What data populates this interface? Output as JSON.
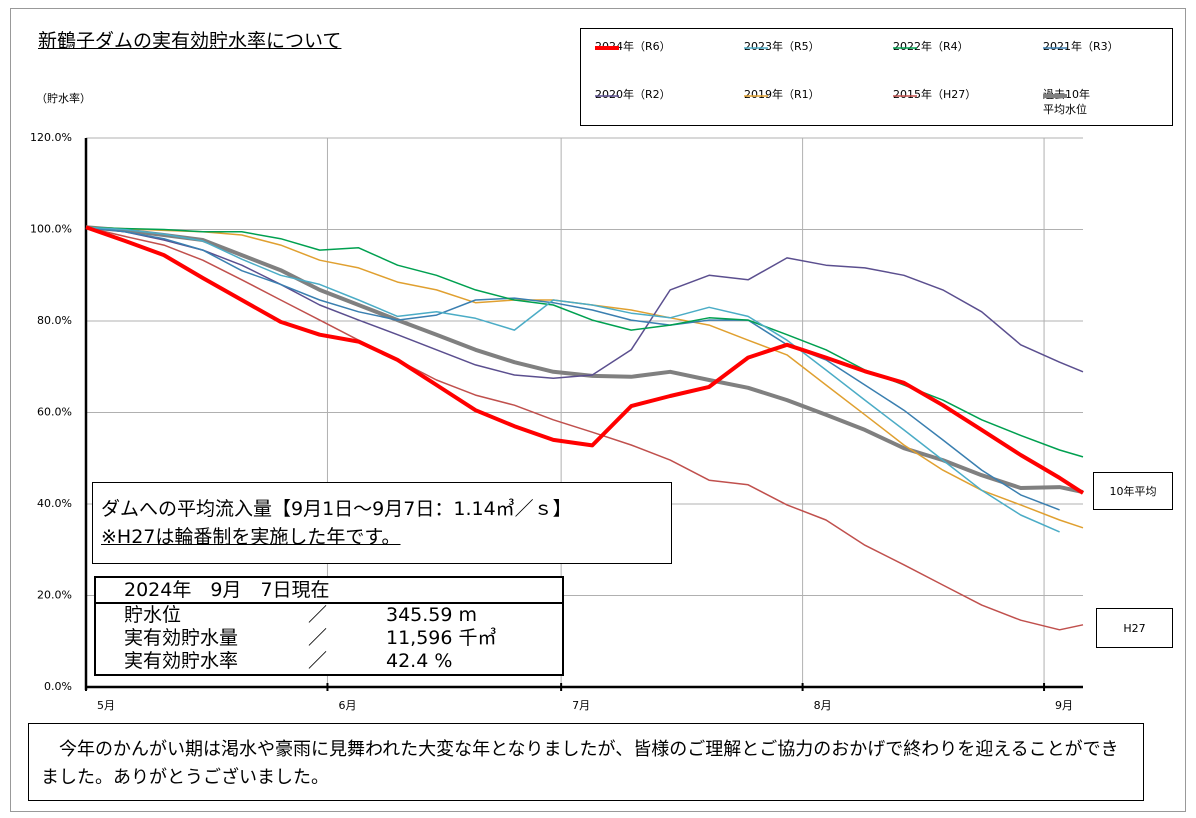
{
  "chart_data": {
    "type": "line",
    "title": "新鶴子ダムの実有効貯水率について",
    "y_label": "（貯水率）",
    "x": [
      0,
      5,
      10,
      15,
      20,
      25,
      30,
      35,
      40,
      45,
      50,
      55,
      60,
      65,
      70,
      75,
      80,
      85,
      90,
      95,
      100,
      105,
      110,
      115,
      120,
      125,
      128
    ],
    "xlim": [
      0,
      128
    ],
    "xticks": [
      {
        "value": 0,
        "label": "5月"
      },
      {
        "value": 31,
        "label": "6月"
      },
      {
        "value": 61,
        "label": "7月"
      },
      {
        "value": 92,
        "label": "8月"
      },
      {
        "value": 123,
        "label": "9月"
      }
    ],
    "ylim": [
      0,
      120
    ],
    "yticks": [
      {
        "value": 0,
        "label": "0.0%"
      },
      {
        "value": 20,
        "label": "20.0%"
      },
      {
        "value": 40,
        "label": "40.0%"
      },
      {
        "value": 60,
        "label": "60.0%"
      },
      {
        "value": 80,
        "label": "80.0%"
      },
      {
        "value": 100,
        "label": "100.0%"
      },
      {
        "value": 120,
        "label": "120.0%"
      }
    ],
    "grid": true,
    "series": [
      {
        "name": "2024年（R6）",
        "color": "#ff0000",
        "line_width": 4,
        "values": [
          100.5,
          97.5,
          94.4,
          89.4,
          84.6,
          79.8,
          77,
          75.5,
          71.5,
          66,
          60.5,
          57,
          54,
          52.8,
          61.4,
          63.6,
          65.6,
          72,
          74.8,
          72,
          69,
          66.5,
          61.6,
          56.2,
          50.7,
          45.7,
          42.4
        ]
      },
      {
        "name": "2023年（R5）",
        "color": "#4bacc6",
        "line_width": 1.5,
        "values": [
          100.5,
          100,
          99,
          97.5,
          93.5,
          90,
          88,
          84.6,
          81,
          82,
          80.6,
          78,
          84.6,
          83.5,
          81.7,
          80.7,
          83,
          81,
          75.8,
          69.3,
          62.7,
          56.2,
          49.6,
          43,
          37.6,
          33.9,
          null
        ]
      },
      {
        "name": "2022年（R4）",
        "color": "#00a050",
        "line_width": 1.5,
        "values": [
          100.5,
          100.2,
          100,
          99.5,
          99.5,
          98,
          95.5,
          96,
          92.2,
          90,
          86.8,
          84.6,
          83.5,
          80.2,
          78,
          79.1,
          80.7,
          80.2,
          77,
          73.7,
          69.3,
          66,
          62.7,
          58.4,
          55,
          51.8,
          50.3
        ]
      },
      {
        "name": "2021年（R3）",
        "color": "#3a7fb0",
        "line_width": 1.5,
        "values": [
          100.5,
          99.5,
          98,
          95.5,
          91,
          88,
          84.6,
          82,
          80.2,
          81.3,
          84.6,
          85,
          84,
          82.4,
          80.2,
          79.1,
          80.2,
          80.2,
          74.8,
          71.5,
          66,
          60.5,
          54,
          47.4,
          42,
          38.7,
          null
        ]
      },
      {
        "name": "2020年（R2）",
        "color": "#5b4f8f",
        "line_width": 1.5,
        "values": [
          100.5,
          99.5,
          97.7,
          95.5,
          92.2,
          88,
          83.5,
          80.2,
          77,
          73.7,
          70.4,
          68.2,
          67.5,
          68.2,
          73.7,
          86.8,
          90,
          89,
          93.8,
          92.2,
          91.6,
          90,
          86.8,
          82,
          74.8,
          71,
          68.9
        ]
      },
      {
        "name": "2019年（R1）",
        "color": "#e0a030",
        "line_width": 1.5,
        "values": [
          100.5,
          100.2,
          99.8,
          99.5,
          98.8,
          96.6,
          93.3,
          91.6,
          88.5,
          86.8,
          84,
          84.6,
          84.6,
          83.5,
          82.4,
          80.7,
          79.1,
          75.8,
          72.6,
          66,
          59.5,
          52.9,
          47.4,
          43,
          39.8,
          36.5,
          34.8
        ]
      },
      {
        "name": "2015年（H27）",
        "color": "#c0504d",
        "line_width": 1.5,
        "values": [
          100.5,
          98.5,
          96.6,
          93.3,
          89,
          84.6,
          80.2,
          75.8,
          71.5,
          67.1,
          63.8,
          61.6,
          58.4,
          55.7,
          52.9,
          49.6,
          45.2,
          44.2,
          39.8,
          36.5,
          31,
          26.7,
          22.3,
          17.9,
          14.6,
          12.5,
          13.6
        ]
      },
      {
        "name": "過去10年\n平均水位",
        "color": "#808080",
        "line_width": 4,
        "values": [
          100.5,
          99.8,
          98.8,
          97.7,
          94.4,
          91.1,
          86.8,
          83.5,
          80.2,
          77,
          73.7,
          71,
          68.9,
          68,
          67.8,
          68.9,
          67.1,
          65.4,
          62.7,
          59.5,
          56.2,
          52.2,
          49.6,
          46.3,
          43.5,
          43.7,
          42.6
        ]
      }
    ],
    "annotations": {
      "avg_label": "10年平均",
      "h27_label": "H27",
      "inflow": "ダムへの平均流入量【9月1日～9月7日：1.14㎥／ｓ】",
      "note": "※H27は輪番制を実施した年です。",
      "status_title": "2024年　9月　7日現在",
      "status_rows": [
        [
          "貯水位",
          "／",
          "345.59 m"
        ],
        [
          "実有効貯水量",
          "／",
          "11,596 千㎥"
        ],
        [
          "実有効貯水率",
          "／",
          "42.4 %"
        ]
      ],
      "message": "　今年のかんがい期は渇水や豪雨に見舞われた大変な年となりましたが、皆様のご理解とご協力のおかげで終わりを迎えることができました。ありがとうございました。"
    }
  }
}
